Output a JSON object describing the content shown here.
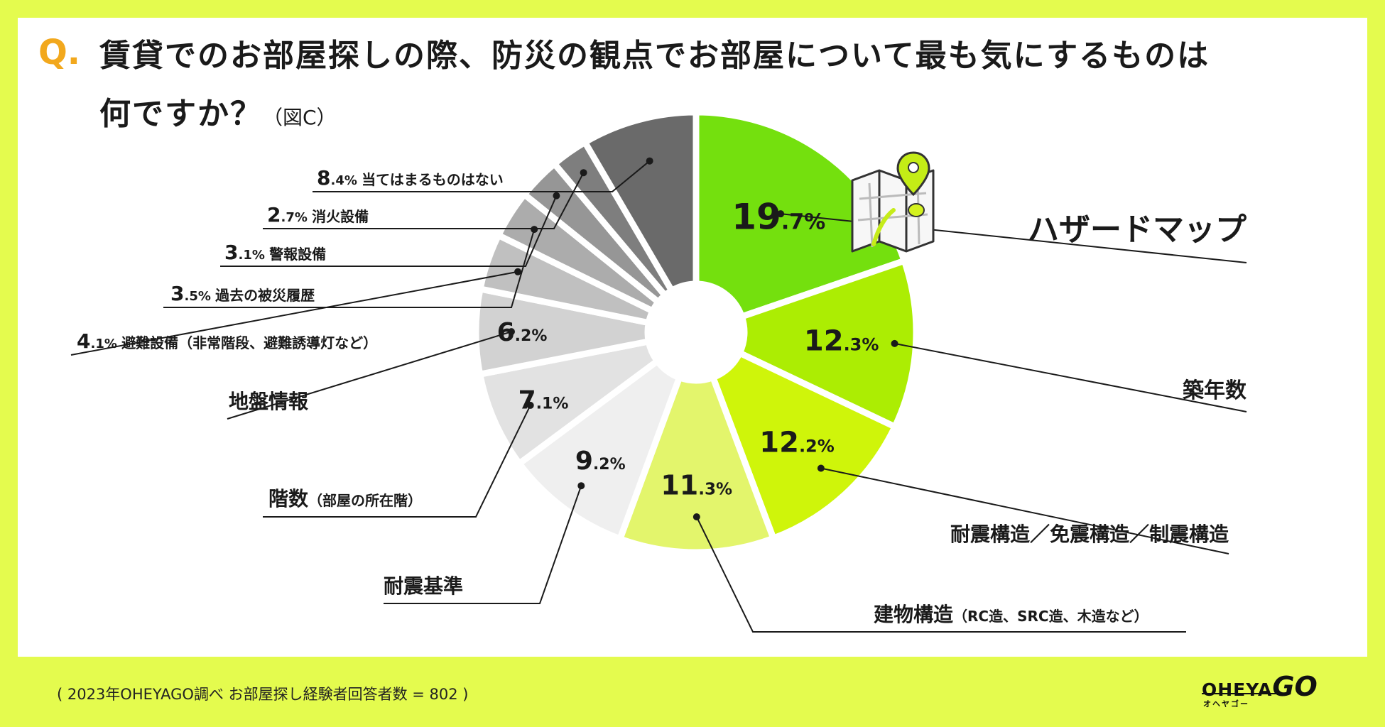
{
  "question": {
    "mark": "Q.",
    "line1": "賃貸でのお部屋探しの際、防災の観点でお部屋について最も気にするものは",
    "line2": "何ですか？",
    "figure": "（図C）"
  },
  "chart_data": {
    "type": "pie",
    "unit": "%",
    "slices": [
      {
        "label": "ハザードマップ",
        "note": "",
        "value": 19.7,
        "int": "19",
        "dec": ".7%",
        "color": "#74e00e"
      },
      {
        "label": "築年数",
        "note": "",
        "value": 12.3,
        "int": "12",
        "dec": ".3%",
        "color": "#aced03"
      },
      {
        "label": "耐震構造／免震構造／制震構造",
        "note": "",
        "value": 12.2,
        "int": "12",
        "dec": ".2%",
        "color": "#cff50a"
      },
      {
        "label": "建物構造",
        "note": "（RC造、SRC造、木造など）",
        "value": 11.3,
        "int": "11",
        "dec": ".3%",
        "color": "#e3f56c"
      },
      {
        "label": "耐震基準",
        "note": "",
        "value": 9.2,
        "int": "9",
        "dec": ".2%",
        "color": "#efefef"
      },
      {
        "label": "階数",
        "note": "（部屋の所在階）",
        "value": 7.1,
        "int": "7",
        "dec": ".1%",
        "color": "#e2e2e2"
      },
      {
        "label": "地盤情報",
        "note": "",
        "value": 6.2,
        "int": "6",
        "dec": ".2%",
        "color": "#d2d2d2"
      },
      {
        "label": "避難設備",
        "note": "（非常階段、避難誘導灯など）",
        "value": 4.1,
        "int": "4",
        "dec": ".1%",
        "color": "#c0c0c0"
      },
      {
        "label": "過去の被災履歴",
        "note": "",
        "value": 3.5,
        "int": "3",
        "dec": ".5%",
        "color": "#acacac"
      },
      {
        "label": "警報設備",
        "note": "",
        "value": 3.1,
        "int": "3",
        "dec": ".1%",
        "color": "#969696"
      },
      {
        "label": "消火設備",
        "note": "",
        "value": 2.7,
        "int": "2",
        "dec": ".7%",
        "color": "#7e7e7e"
      },
      {
        "label": "当てはまるものはない",
        "note": "",
        "value": 8.4,
        "int": "8",
        "dec": ".4%",
        "color": "#6a6a6a"
      }
    ]
  },
  "footer": {
    "note": "( 2023年OHEYAGO調べ お部屋探し経験者回答者数 = 802 )"
  },
  "logo": {
    "main": "OHEYA",
    "go": "GO",
    "sub": "オヘヤゴー"
  },
  "icons": {
    "map": "map-pin-icon"
  }
}
